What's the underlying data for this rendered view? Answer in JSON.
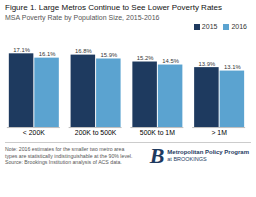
{
  "chart_data": {
    "type": "bar",
    "title": "Figure 1. Large Metros Continue to See Lower Poverty Rates",
    "subtitle": "MSA Poverty Rate by Population Size, 2015-2016",
    "categories": [
      "< 200K",
      "200K to 500K",
      "500K to 1M",
      "> 1M"
    ],
    "series": [
      {
        "name": "2015",
        "color": "#1e3a5f",
        "values": [
          17.1,
          16.8,
          15.2,
          13.9
        ],
        "value_labels": [
          "17.1%",
          "16.8%",
          "15.2%",
          "13.9%"
        ]
      },
      {
        "name": "2016",
        "color": "#5ba3d0",
        "values": [
          16.1,
          15.9,
          14.5,
          13.1
        ],
        "value_labels": [
          "16.1%",
          "15.9%",
          "14.5%",
          "13.1%"
        ]
      }
    ],
    "ylim": [
      0,
      20
    ],
    "data_labels": true,
    "tick_labels": "x",
    "legend": "upper right",
    "annotations": [
      "Note: 2016 estimates for the smaller two metro area",
      "types are statistically indistinguishable at the 90% level.",
      "Source: Brookings Institution analysis of ACS data.",
      "B",
      "Metropolitan Policy Program",
      "at BROOKINGS"
    ]
  }
}
